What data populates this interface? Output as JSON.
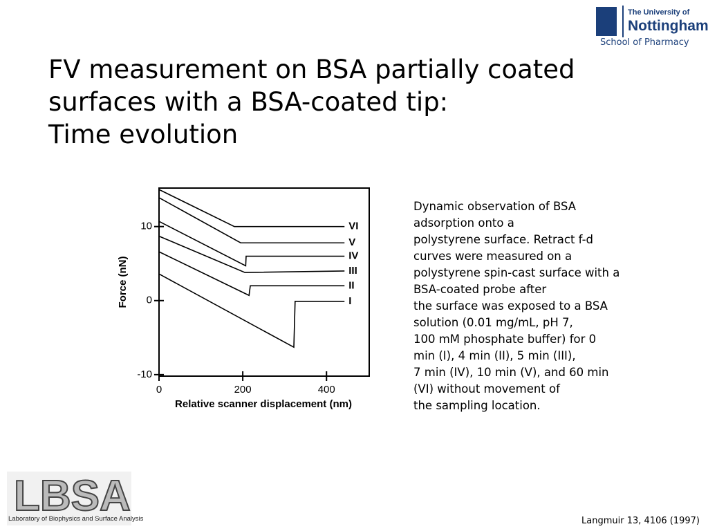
{
  "header": {
    "title_lines": [
      "FV measurement on BSA partially coated",
      "surfaces with a BSA-coated tip:",
      "Time evolution"
    ],
    "university": "The University of",
    "university_name": "Nottingham",
    "school": "School of Pharmacy"
  },
  "chart_data": {
    "type": "line",
    "ylabel": "Force (nN)",
    "xlabel": "Relative scanner displacement (nm)",
    "xlim": [
      0,
      502
    ],
    "ylim": [
      -10.2,
      15.2
    ],
    "xticks": [
      0,
      200,
      400
    ],
    "yticks": [
      -10,
      0,
      10
    ],
    "series": [
      {
        "name": "VI",
        "color": "#000000",
        "x": [
          0,
          180,
          443
        ],
        "values": [
          15.0,
          10.0,
          10.0
        ]
      },
      {
        "name": "V",
        "color": "#000000",
        "x": [
          0,
          195,
          443
        ],
        "values": [
          13.9,
          7.8,
          7.8
        ]
      },
      {
        "name": "IV",
        "color": "#000000",
        "x": [
          0,
          207,
          208,
          443
        ],
        "values": [
          10.7,
          4.7,
          6.0,
          6.0
        ]
      },
      {
        "name": "III",
        "color": "#000000",
        "x": [
          0,
          205,
          443
        ],
        "values": [
          8.7,
          3.8,
          4.0
        ]
      },
      {
        "name": "II",
        "color": "#000000",
        "x": [
          0,
          215,
          218,
          443
        ],
        "values": [
          6.6,
          0.7,
          2.0,
          2.0
        ]
      },
      {
        "name": "I",
        "color": "#000000",
        "x": [
          0,
          322,
          325,
          443
        ],
        "values": [
          3.6,
          -6.3,
          -0.1,
          -0.1
        ]
      }
    ]
  },
  "description": {
    "lines": [
      "Dynamic observation of BSA",
      "adsorption onto a",
      "polystyrene surface. Retract f-d",
      "curves were measured on a",
      "polystyrene spin-cast surface with a",
      "BSA-coated probe after",
      "the surface was exposed to a BSA",
      "solution (0.01 mg/mL, pH 7,",
      "100 mM phosphate buffer) for 0",
      "min (I), 4 min (II), 5 min (III),",
      "7 min (IV), 10 min (V), and 60 min",
      "(VI) without movement of",
      "the sampling location."
    ]
  },
  "footer": {
    "logo": "LBSA",
    "logo_caption": "Laboratory of Biophysics and Surface Analysis",
    "citation": "Langmuir 13, 4106 (1997)"
  }
}
